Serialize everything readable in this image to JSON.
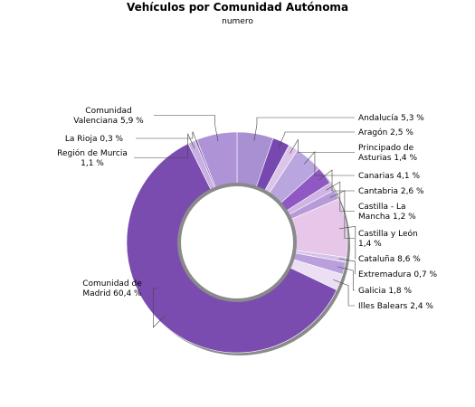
{
  "chart_data": {
    "type": "pie",
    "title": "Vehículos por Comunidad Autónoma",
    "subtitle": "numero",
    "slices": [
      {
        "label": "Andalucía 5,3 %",
        "value": 5.3,
        "color": "#a990d2"
      },
      {
        "label": "Aragón 2,5 %",
        "value": 2.5,
        "color": "#7648b0"
      },
      {
        "label": "Principado de Asturias 1,4 %",
        "value": 1.4,
        "color": "#ddc5ea"
      },
      {
        "label": "Canarias 4,1 %",
        "value": 4.1,
        "color": "#b9a6de"
      },
      {
        "label": "Cantabria 2,6 %",
        "value": 2.6,
        "color": "#8f58c2"
      },
      {
        "label": "Castilla - La Mancha 1,2 %",
        "value": 1.2,
        "color": "#cfb4e4"
      },
      {
        "label": "Castilla y León 1,4 %",
        "value": 1.4,
        "color": "#b79ad8"
      },
      {
        "label": "Cataluña 8,6 %",
        "value": 8.6,
        "color": "#e7c7e9"
      },
      {
        "label": "Extremadura 0,7 %",
        "value": 0.7,
        "color": "#d7c2ea"
      },
      {
        "label": "Galicia 1,8 %",
        "value": 1.8,
        "color": "#b9a0dc"
      },
      {
        "label": "Illes Balears 2,4 %",
        "value": 2.4,
        "color": "#ecdff4"
      },
      {
        "label": "Comunidad de Madrid 60,4 %",
        "value": 60.4,
        "color": "#7a4cb0"
      },
      {
        "label": "Región de Murcia 1,1 %",
        "value": 1.1,
        "color": "#c8b0e2"
      },
      {
        "label": "La Rioja 0,3 %",
        "value": 0.3,
        "color": "#9a74c8"
      },
      {
        "label": "Comunidad Valenciana 5,9 %",
        "value": 5.9,
        "color": "#ae94d6"
      }
    ]
  }
}
